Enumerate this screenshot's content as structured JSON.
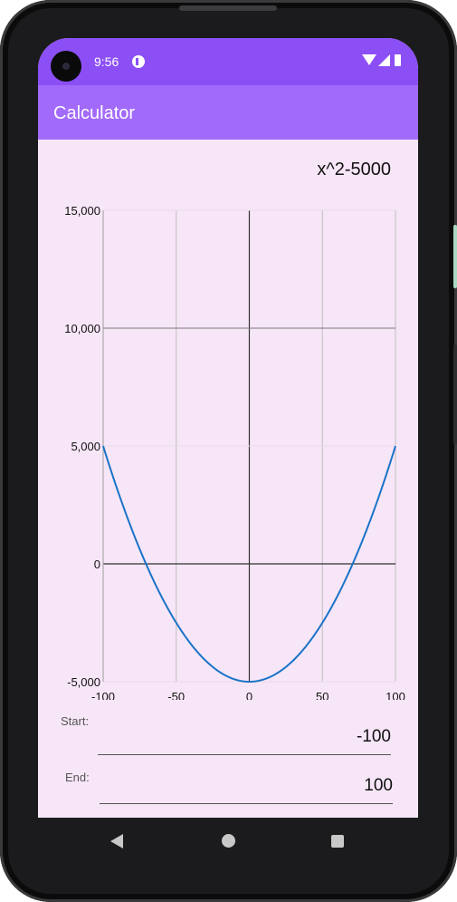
{
  "status_bar": {
    "time": "9:56",
    "icons": [
      "media-notification-icon",
      "wifi-icon",
      "signal-icon",
      "battery-icon"
    ]
  },
  "app_bar": {
    "title": "Calculator"
  },
  "expression": "x^2-5000",
  "chart_data": {
    "type": "line",
    "title": "",
    "xlabel": "",
    "ylabel": "",
    "function": "x^2-5000",
    "xlim": [
      -100,
      100
    ],
    "ylim": [
      -5000,
      15000
    ],
    "x_ticks": [
      "-100",
      "-50",
      "0",
      "50",
      "100"
    ],
    "y_ticks": [
      "15,000",
      "10,000",
      "5,000",
      "0",
      "-5,000"
    ],
    "series": [
      {
        "color": "#1a73c7",
        "x": [
          -100,
          -90,
          -80,
          -70,
          -60,
          -50,
          -40,
          -30,
          -20,
          -10,
          0,
          10,
          20,
          30,
          40,
          50,
          60,
          70,
          80,
          90,
          100
        ],
        "y": [
          5000,
          3100,
          1400,
          -100,
          -1400,
          -2500,
          -3400,
          -4100,
          -4600,
          -4900,
          -5000,
          -4900,
          -4600,
          -4100,
          -3400,
          -2500,
          -1400,
          -100,
          1400,
          3100,
          5000
        ]
      }
    ],
    "grid": true
  },
  "inputs": {
    "start": {
      "label": "Start:",
      "value": "-100"
    },
    "end": {
      "label": "End:",
      "value": "100"
    }
  },
  "colors": {
    "status_bar": "#8c4ff5",
    "app_bar": "#a26afa",
    "background": "#f7e6f7",
    "curve": "#1a73c7"
  },
  "nav_bar": {
    "icons": [
      "back-icon",
      "home-icon",
      "recents-icon"
    ]
  }
}
